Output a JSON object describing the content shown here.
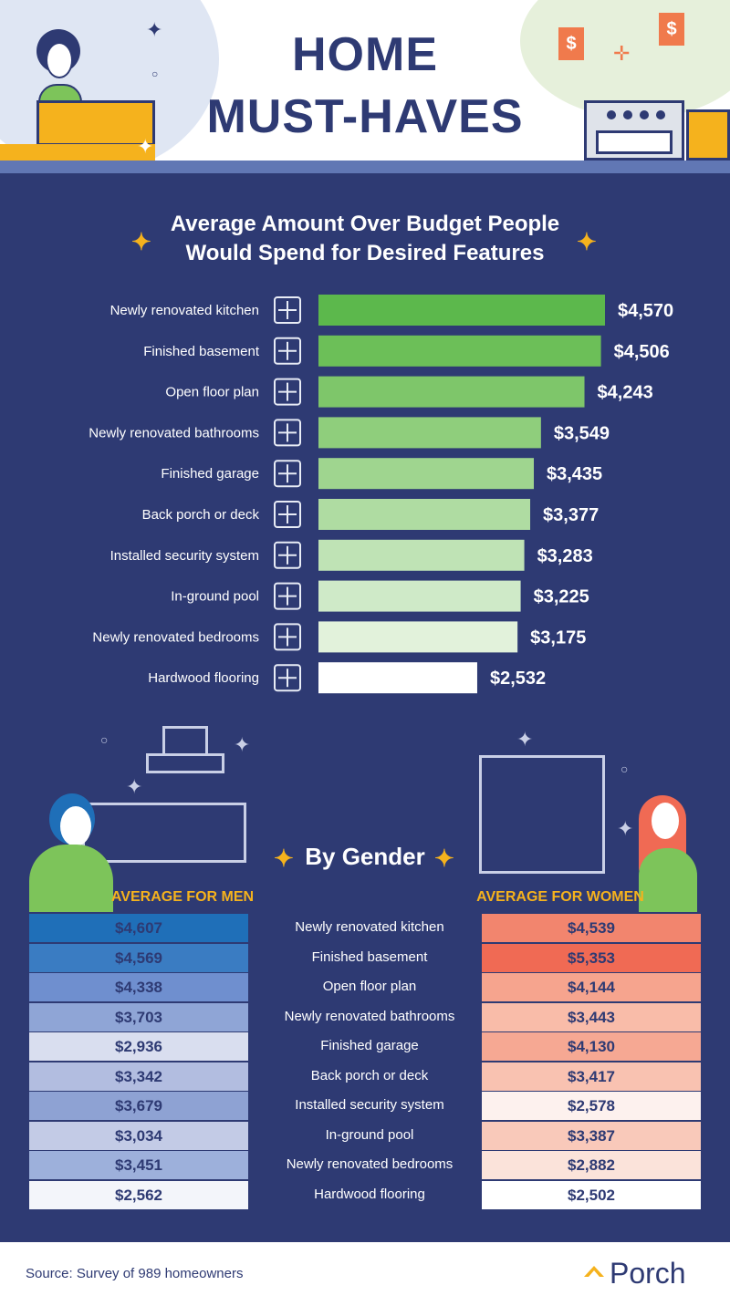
{
  "header": {
    "title_line1": "HOME",
    "title_line2": "MUST-HAVES"
  },
  "chart_data": [
    {
      "type": "bar",
      "orientation": "horizontal",
      "title": "Average Amount Over Budget People Would Spend for Desired Features",
      "categories": [
        "Newly renovated kitchen",
        "Finished basement",
        "Open floor plan",
        "Newly renovated bathrooms",
        "Finished garage",
        "Back porch or deck",
        "Installed security system",
        "In-ground pool",
        "Newly renovated bedrooms",
        "Hardwood flooring"
      ],
      "values": [
        4570,
        4506,
        4243,
        3549,
        3435,
        3377,
        3283,
        3225,
        3175,
        2532
      ],
      "value_labels": [
        "$4,570",
        "$4,506",
        "$4,243",
        "$3,549",
        "$3,435",
        "$3,377",
        "$3,283",
        "$3,225",
        "$3,175",
        "$2,532"
      ],
      "icons": [
        "kitchen-icon",
        "basement-stairs-icon",
        "floor-plan-icon",
        "bathtub-icon",
        "garage-icon",
        "umbrella-table-icon",
        "speaker-icon",
        "pool-ladder-icon",
        "bed-icon",
        "wood-floor-icon"
      ],
      "bar_colors": [
        "#5cb84c",
        "#6cbf58",
        "#7ec66a",
        "#8fce7c",
        "#9fd58f",
        "#afdca2",
        "#bfe3b5",
        "#cfeac8",
        "#e2f2db",
        "#ffffff"
      ],
      "xlim": [
        0,
        4570
      ]
    },
    {
      "type": "table",
      "title": "By Gender",
      "columns": [
        "AVERAGE FOR MEN",
        "AVERAGE FOR WOMEN"
      ],
      "rows": [
        "Newly renovated kitchen",
        "Finished basement",
        "Open floor plan",
        "Newly renovated bathrooms",
        "Finished garage",
        "Back porch or deck",
        "Installed security system",
        "In-ground pool",
        "Newly renovated bedrooms",
        "Hardwood flooring"
      ],
      "men": [
        "$4,607",
        "$4,569",
        "$4,338",
        "$3,703",
        "$2,936",
        "$3,342",
        "$3,679",
        "$3,034",
        "$3,451",
        "$2,562"
      ],
      "women": [
        "$4,539",
        "$5,353",
        "$4,144",
        "$3,443",
        "$4,130",
        "$3,417",
        "$2,578",
        "$3,387",
        "$2,882",
        "$2,502"
      ],
      "men_colors": [
        "#1f6fb8",
        "#3a7cc2",
        "#6f8fcf",
        "#8fa5d6",
        "#d9deef",
        "#b2bde0",
        "#8ea2d3",
        "#c3cbe6",
        "#9db0db",
        "#f3f5fa"
      ],
      "women_colors": [
        "#f2856e",
        "#f06a54",
        "#f6a48e",
        "#f9bca9",
        "#f6a893",
        "#f9c2b1",
        "#fdf1ee",
        "#f9c9ba",
        "#fbe3da",
        "#ffffff"
      ]
    }
  ],
  "footer": {
    "source": "Source: Survey of 989 homeowners",
    "brand": "Porch"
  }
}
